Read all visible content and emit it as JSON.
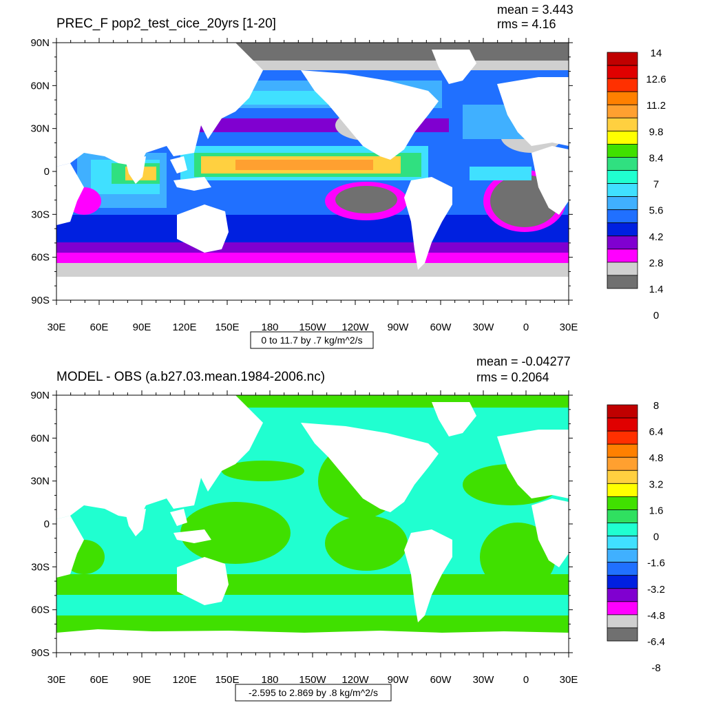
{
  "panels": [
    {
      "id": "top",
      "title": "PREC_F pop2_test_cice_20yrs [1-20]",
      "mean_label": "mean = 3.443",
      "rms_label": "rms = 4.16",
      "info_label": "0 to 11.7 by .7 kg/m^2/s",
      "lat_labels": [
        "90N",
        "60N",
        "30N",
        "0",
        "30S",
        "60S",
        "90S"
      ],
      "lon_labels": [
        "30E",
        "60E",
        "90E",
        "120E",
        "150E",
        "180",
        "150W",
        "120W",
        "90W",
        "60W",
        "30W",
        "0",
        "30E"
      ],
      "colorbar": {
        "labels": [
          "14",
          "12.6",
          "11.2",
          "9.8",
          "8.4",
          "7",
          "5.6",
          "4.2",
          "2.8",
          "1.4",
          "0"
        ],
        "colors": [
          "#c00000",
          "#e00000",
          "#ff3000",
          "#ff8000",
          "#ffa030",
          "#ffd040",
          "#ffff00",
          "#40e000",
          "#30e080",
          "#20ffd0",
          "#40e0ff",
          "#40b0ff",
          "#2070ff",
          "#0020e0",
          "#8000d0",
          "#ff00ff",
          "#d0d0d0",
          "#707070"
        ]
      }
    },
    {
      "id": "bottom",
      "title": "MODEL - OBS (a.b27.03.mean.1984-2006.nc)",
      "mean_label": "mean = -0.04277",
      "rms_label": "rms = 0.2064",
      "info_label": "-2.595 to 2.869 by .8 kg/m^2/s",
      "lat_labels": [
        "90N",
        "60N",
        "30N",
        "0",
        "30S",
        "60S",
        "90S"
      ],
      "lon_labels": [
        "30E",
        "60E",
        "90E",
        "120E",
        "150E",
        "180",
        "150W",
        "120W",
        "90W",
        "60W",
        "30W",
        "0",
        "30E"
      ],
      "colorbar": {
        "labels": [
          "8",
          "6.4",
          "4.8",
          "3.2",
          "1.6",
          "0",
          "-1.6",
          "-3.2",
          "-4.8",
          "-6.4",
          "-8"
        ],
        "colors": [
          "#c00000",
          "#e00000",
          "#ff3000",
          "#ff8000",
          "#ffa030",
          "#ffd040",
          "#ffff00",
          "#40e000",
          "#30e060",
          "#20ffd0",
          "#40e0ff",
          "#40b0ff",
          "#2070ff",
          "#0020e0",
          "#8000d0",
          "#ff00ff",
          "#d0d0d0",
          "#707070"
        ]
      }
    }
  ]
}
